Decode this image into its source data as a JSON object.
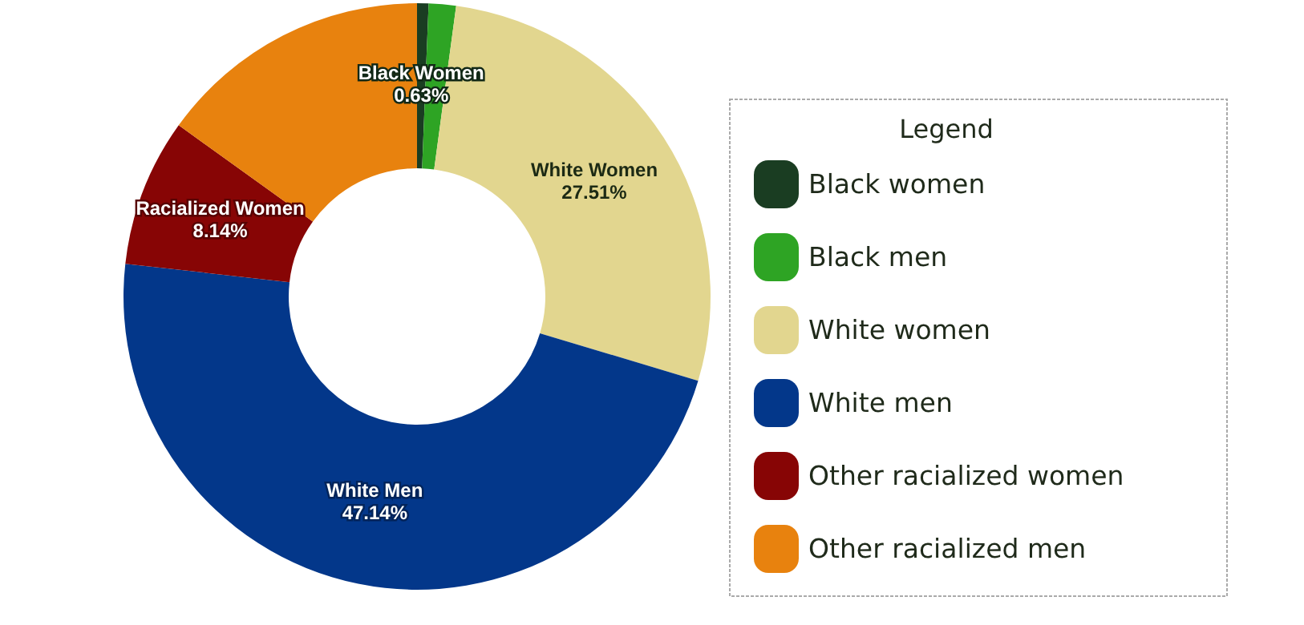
{
  "chart_data": {
    "type": "donut",
    "legend_title": "Legend",
    "legend": "right",
    "categories": [
      "Black women",
      "Black men",
      "White women",
      "White men",
      "Other racialized women",
      "Other racialized men"
    ],
    "values": [
      0.63,
      1.5,
      27.51,
      47.14,
      8.14,
      15.08
    ],
    "colors": [
      "#1a3d22",
      "#2ea424",
      "#e2d68f",
      "#03378a",
      "#870505",
      "#e8820e"
    ],
    "value_labels": [
      "Black Women 0.63%",
      null,
      "White Women 27.51%",
      "White Men 47.14%",
      "Racialized Women 8.14%",
      null
    ]
  }
}
